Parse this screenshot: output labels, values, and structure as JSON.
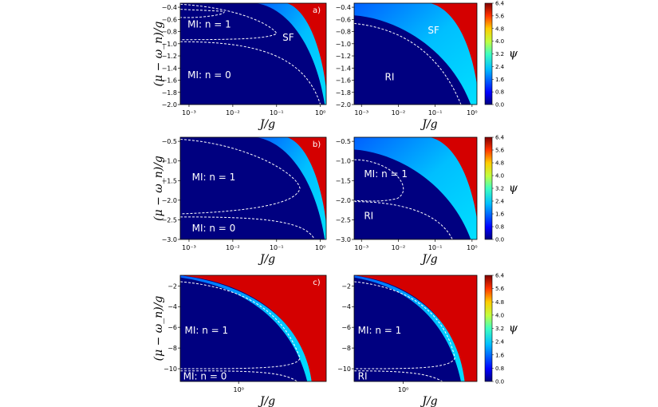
{
  "figure": {
    "ylabel": "(μ − ω_n)/g",
    "xlabel": "J/g",
    "colorbar_label": "ψ",
    "colorbar_ticks": [
      "6.4",
      "5.6",
      "4.8",
      "4.0",
      "3.2",
      "2.4",
      "1.6",
      "0.8",
      "0.0"
    ],
    "colors": {
      "low": "#000080",
      "mid": "#00e5ff",
      "high": "#ff0000",
      "boundary": "#ffffff"
    }
  },
  "chart_data": [
    {
      "type": "heatmap",
      "panel_label": "a)",
      "row": "a",
      "x_scale": "log",
      "xlim": [
        0.0003,
        1.1
      ],
      "ylim": [
        -2.0,
        -0.35
      ],
      "x_ticks": [
        "10⁻³",
        "10⁻²",
        "10⁻¹",
        "10⁰"
      ],
      "y_ticks": [
        "−0.4",
        "−0.6",
        "−0.8",
        "−1.0",
        "−1.2",
        "−1.4",
        "−1.6",
        "−1.8",
        "−2.0"
      ],
      "regions": [
        {
          "text": "MI: n = 1"
        },
        {
          "text": "MI: n = 0"
        },
        {
          "text": "SF"
        }
      ]
    },
    {
      "type": "heatmap",
      "panel_label": "",
      "row": "a",
      "x_scale": "log",
      "xlim": [
        0.0003,
        1.1
      ],
      "ylim": [
        -2.0,
        -0.35
      ],
      "x_ticks": [
        "10⁻³",
        "10⁻²",
        "10⁻¹",
        "10⁰"
      ],
      "y_ticks": [
        "−0.4",
        "−0.6",
        "−0.8",
        "−1.0",
        "−1.2",
        "−1.4",
        "−1.6",
        "−1.8",
        "−2.0"
      ],
      "regions": [
        {
          "text": "SF"
        },
        {
          "text": "RI"
        }
      ]
    },
    {
      "type": "heatmap",
      "panel_label": "b)",
      "row": "b",
      "x_scale": "log",
      "xlim": [
        0.001,
        1.5
      ],
      "ylim": [
        -3.0,
        -0.35
      ],
      "x_ticks": [
        "10⁻³",
        "10⁻²",
        "10⁻¹",
        "10⁰"
      ],
      "y_ticks": [
        "−0.5",
        "−1.0",
        "−1.5",
        "−2.0",
        "−2.5",
        "−3.0"
      ],
      "regions": [
        {
          "text": "MI: n = 1"
        },
        {
          "text": "MI: n = 0"
        }
      ]
    },
    {
      "type": "heatmap",
      "panel_label": "",
      "row": "b",
      "x_scale": "log",
      "xlim": [
        0.001,
        1.5
      ],
      "ylim": [
        -3.0,
        -0.35
      ],
      "x_ticks": [
        "10⁻³",
        "10⁻²",
        "10⁻¹",
        "10⁰"
      ],
      "y_ticks": [
        "−0.5",
        "−1.0",
        "−1.5",
        "−2.0",
        "−2.5",
        "−3.0"
      ],
      "regions": [
        {
          "text": "MI: n = 1"
        },
        {
          "text": "RI"
        }
      ]
    },
    {
      "type": "heatmap",
      "panel_label": "c)",
      "row": "c",
      "x_scale": "log",
      "ylim": [
        -11,
        -0.5
      ],
      "x_ticks": [
        "10⁰"
      ],
      "y_ticks": [
        "−2",
        "−4",
        "−6",
        "−8",
        "−10"
      ],
      "regions": [
        {
          "text": "MI: n = 1"
        },
        {
          "text": "MI: n = 0"
        }
      ]
    },
    {
      "type": "heatmap",
      "panel_label": "",
      "row": "c",
      "x_scale": "log",
      "ylim": [
        -11,
        -0.5
      ],
      "x_ticks": [
        "10⁰"
      ],
      "y_ticks": [
        "−2",
        "−4",
        "−6",
        "−8",
        "−10"
      ],
      "regions": [
        {
          "text": "MI: n = 1"
        },
        {
          "text": "RI"
        }
      ]
    }
  ]
}
